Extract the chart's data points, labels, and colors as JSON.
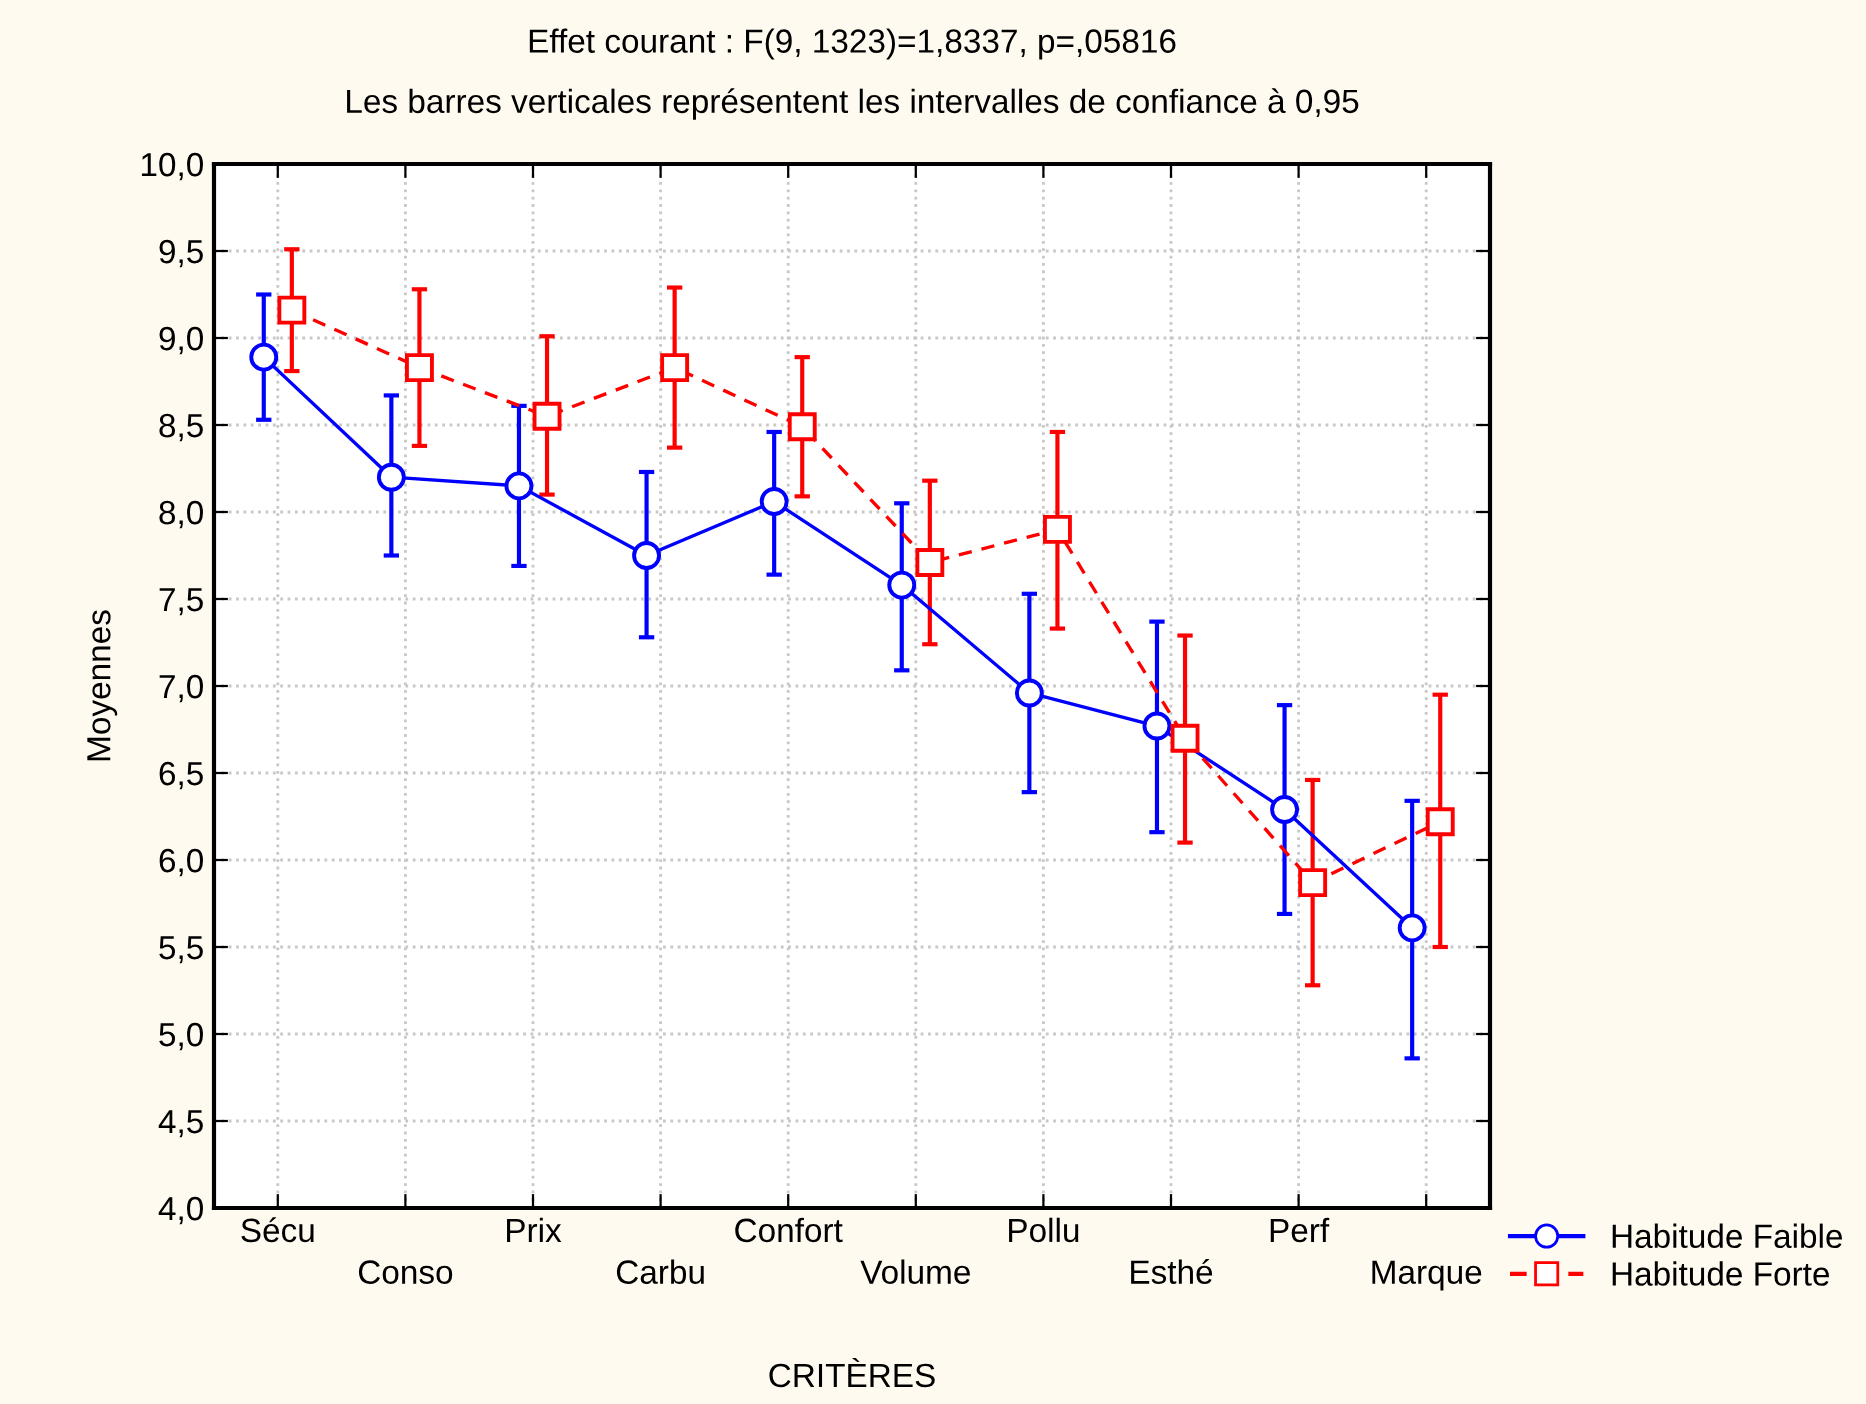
{
  "chart_data": {
    "type": "line",
    "title": "Effet courant : F(9, 1323)=1,8337, p=,05816",
    "subtitle": "Les barres verticales représentent les intervalles de confiance à 0,95",
    "xlabel": "CRITÈRES",
    "ylabel": "Moyennes",
    "categories": [
      "Sécu",
      "Conso",
      "Prix",
      "Carbu",
      "Confort",
      "Volume",
      "Pollu",
      "Esthé",
      "Perf",
      "Marque"
    ],
    "series": [
      {
        "name": "Habitude Faible",
        "color": "#0000ff",
        "marker": "circle",
        "line_style": "solid",
        "values": [
          8.89,
          8.2,
          8.15,
          7.75,
          8.06,
          7.58,
          6.96,
          6.77,
          6.29,
          5.61
        ],
        "errors": [
          [
            8.53,
            9.25
          ],
          [
            7.75,
            8.67
          ],
          [
            7.69,
            8.61
          ],
          [
            7.28,
            8.23
          ],
          [
            7.64,
            8.46
          ],
          [
            7.09,
            8.05
          ],
          [
            6.39,
            7.53
          ],
          [
            6.16,
            7.37
          ],
          [
            5.69,
            6.89
          ],
          [
            4.86,
            6.34
          ]
        ]
      },
      {
        "name": "Habitude Forte",
        "color": "#ff0000",
        "marker": "square",
        "line_style": "dashed",
        "values": [
          9.16,
          8.83,
          8.55,
          8.83,
          8.49,
          7.71,
          7.9,
          6.7,
          5.87,
          6.22
        ],
        "errors": [
          [
            8.81,
            9.51
          ],
          [
            8.38,
            9.28
          ],
          [
            8.1,
            9.01
          ],
          [
            8.37,
            9.29
          ],
          [
            8.09,
            8.89
          ],
          [
            7.24,
            8.18
          ],
          [
            7.33,
            8.46
          ],
          [
            6.1,
            7.29
          ],
          [
            5.28,
            6.46
          ],
          [
            5.5,
            6.95
          ]
        ]
      }
    ],
    "ylim": [
      4.0,
      10.0
    ],
    "yticks": [
      {
        "value": 4.0,
        "label": "4,0"
      },
      {
        "value": 4.5,
        "label": "4,5"
      },
      {
        "value": 5.0,
        "label": "5,0"
      },
      {
        "value": 5.5,
        "label": "5,5"
      },
      {
        "value": 6.0,
        "label": "6,0"
      },
      {
        "value": 6.5,
        "label": "6,5"
      },
      {
        "value": 7.0,
        "label": "7,0"
      },
      {
        "value": 7.5,
        "label": "7,5"
      },
      {
        "value": 8.0,
        "label": "8,0"
      },
      {
        "value": 8.5,
        "label": "8,5"
      },
      {
        "value": 9.0,
        "label": "9,0"
      },
      {
        "value": 9.5,
        "label": "9,5"
      },
      {
        "value": 10.0,
        "label": "10,0"
      }
    ],
    "grid": true,
    "legend": "bottom right"
  }
}
